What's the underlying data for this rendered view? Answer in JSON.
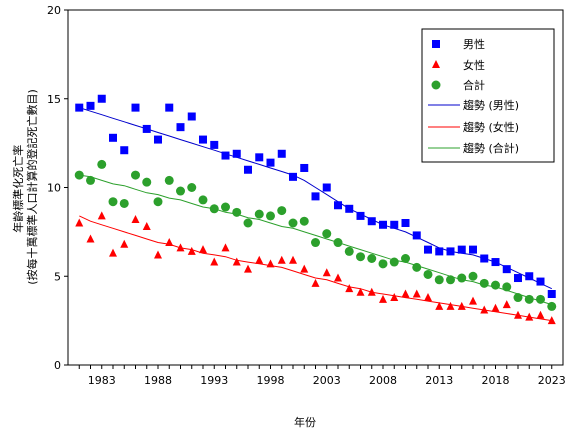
{
  "chart_data": {
    "type": "scatter",
    "title": "",
    "xlabel": "年份",
    "ylabel_lines": [
      "年齡標準化死亡率",
      "(按每十萬標準人口計算的登記死亡數目)"
    ],
    "xlim": [
      1980,
      2024
    ],
    "ylim": [
      0,
      20
    ],
    "x_ticks": [
      1983,
      1988,
      1993,
      1998,
      2003,
      2008,
      2013,
      2018,
      2023
    ],
    "y_ticks": [
      0,
      5,
      10,
      15,
      20
    ],
    "grid": false,
    "legend_position": "top-right",
    "x": [
      1981,
      1982,
      1983,
      1984,
      1985,
      1986,
      1987,
      1988,
      1989,
      1990,
      1991,
      1992,
      1993,
      1994,
      1995,
      1996,
      1997,
      1998,
      1999,
      2000,
      2001,
      2002,
      2003,
      2004,
      2005,
      2006,
      2007,
      2008,
      2009,
      2010,
      2011,
      2012,
      2013,
      2014,
      2015,
      2016,
      2017,
      2018,
      2019,
      2020,
      2021,
      2022,
      2023
    ],
    "series": [
      {
        "name": "男性",
        "marker": "square",
        "color": "#0000ff",
        "values": [
          14.5,
          14.6,
          15.0,
          12.8,
          12.1,
          14.5,
          13.3,
          12.7,
          14.5,
          13.4,
          14.0,
          12.7,
          12.4,
          11.8,
          11.9,
          11.0,
          11.7,
          11.4,
          11.9,
          10.6,
          11.1,
          9.5,
          10.0,
          9.0,
          8.8,
          8.4,
          8.1,
          7.9,
          7.9,
          8.0,
          7.3,
          6.5,
          6.4,
          6.4,
          6.5,
          6.5,
          6.0,
          5.8,
          5.4,
          4.9,
          5.0,
          4.7,
          4.0
        ]
      },
      {
        "name": "女性",
        "marker": "triangle",
        "color": "#ff0000",
        "values": [
          8.0,
          7.1,
          8.4,
          6.3,
          6.8,
          8.2,
          7.8,
          6.2,
          6.9,
          6.6,
          6.4,
          6.5,
          5.8,
          6.6,
          5.8,
          5.4,
          5.9,
          5.7,
          5.9,
          5.9,
          5.4,
          4.6,
          5.2,
          4.9,
          4.3,
          4.1,
          4.1,
          3.7,
          3.8,
          4.0,
          4.0,
          3.8,
          3.3,
          3.3,
          3.3,
          3.6,
          3.1,
          3.2,
          3.4,
          2.8,
          2.7,
          2.8,
          2.5
        ]
      },
      {
        "name": "合計",
        "marker": "circle",
        "color": "#2ca02c",
        "values": [
          10.7,
          10.4,
          11.3,
          9.2,
          9.1,
          10.7,
          10.3,
          9.2,
          10.4,
          9.8,
          10.0,
          9.3,
          8.8,
          8.9,
          8.6,
          8.0,
          8.5,
          8.4,
          8.7,
          8.0,
          8.1,
          6.9,
          7.4,
          6.9,
          6.4,
          6.1,
          6.0,
          5.7,
          5.8,
          6.0,
          5.5,
          5.1,
          4.8,
          4.8,
          4.9,
          5.0,
          4.6,
          4.5,
          4.4,
          3.8,
          3.7,
          3.7,
          3.3
        ]
      }
    ],
    "trends": [
      {
        "name": "趨勢 (男性)",
        "color": "#0000cc",
        "values": [
          14.5,
          14.3,
          14.1,
          13.9,
          13.7,
          13.5,
          13.3,
          13.1,
          12.9,
          12.7,
          12.5,
          12.3,
          12.1,
          11.9,
          11.7,
          11.5,
          11.3,
          11.1,
          10.9,
          10.7,
          10.4,
          10.0,
          9.6,
          9.2,
          8.8,
          8.5,
          8.2,
          7.9,
          7.7,
          7.5,
          7.2,
          6.9,
          6.6,
          6.4,
          6.3,
          6.2,
          6.0,
          5.8,
          5.5,
          5.2,
          4.9,
          4.6,
          4.3
        ]
      },
      {
        "name": "趨勢 (女性)",
        "color": "#ff0000",
        "values": [
          8.4,
          8.1,
          7.9,
          7.7,
          7.5,
          7.3,
          7.1,
          6.9,
          6.8,
          6.6,
          6.5,
          6.3,
          6.2,
          6.1,
          5.9,
          5.8,
          5.7,
          5.6,
          5.5,
          5.3,
          5.1,
          4.9,
          4.8,
          4.6,
          4.4,
          4.3,
          4.1,
          4.0,
          3.9,
          3.8,
          3.7,
          3.6,
          3.5,
          3.4,
          3.3,
          3.2,
          3.1,
          3.0,
          2.9,
          2.8,
          2.7,
          2.6,
          2.5
        ]
      },
      {
        "name": "趨勢 (合計)",
        "color": "#2ca02c",
        "values": [
          10.7,
          10.6,
          10.4,
          10.2,
          10.1,
          9.9,
          9.7,
          9.6,
          9.4,
          9.3,
          9.1,
          8.9,
          8.8,
          8.6,
          8.5,
          8.3,
          8.2,
          8.0,
          7.8,
          7.7,
          7.5,
          7.3,
          7.1,
          6.9,
          6.7,
          6.5,
          6.3,
          6.1,
          5.9,
          5.8,
          5.6,
          5.4,
          5.2,
          5.0,
          4.8,
          4.7,
          4.5,
          4.4,
          4.2,
          4.0,
          3.8,
          3.6,
          3.4
        ]
      }
    ]
  }
}
